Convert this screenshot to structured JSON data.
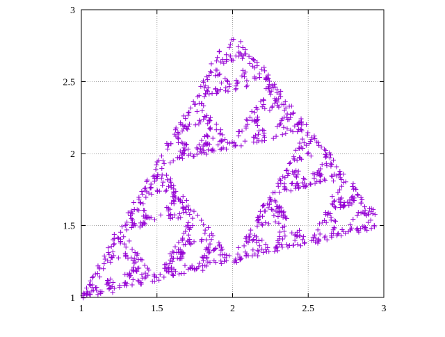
{
  "chart_data": {
    "type": "scatter",
    "title": "",
    "xlabel": "",
    "ylabel": "",
    "xlim": [
      1,
      3
    ],
    "ylim": [
      1,
      3
    ],
    "xticks": [
      1,
      1.5,
      2,
      2.5,
      3
    ],
    "yticks": [
      1,
      1.5,
      2,
      2.5,
      3
    ],
    "xtick_labels": [
      "1",
      "1.5",
      "2",
      "2.5",
      "3"
    ],
    "ytick_labels": [
      "1",
      "1.5",
      "2",
      "2.5",
      "3"
    ],
    "grid": true,
    "legend": "none",
    "marker": "plus",
    "marker_color": "#9400d3",
    "vertices": [
      [
        1.0,
        1.0
      ],
      [
        2.0,
        2.85
      ],
      [
        3.0,
        1.5
      ]
    ],
    "point_count": 1200,
    "series": [
      {
        "style": "points",
        "color": "#9400d3",
        "points": "sierpinski-like chaos-game set over the three vertices"
      }
    ]
  }
}
